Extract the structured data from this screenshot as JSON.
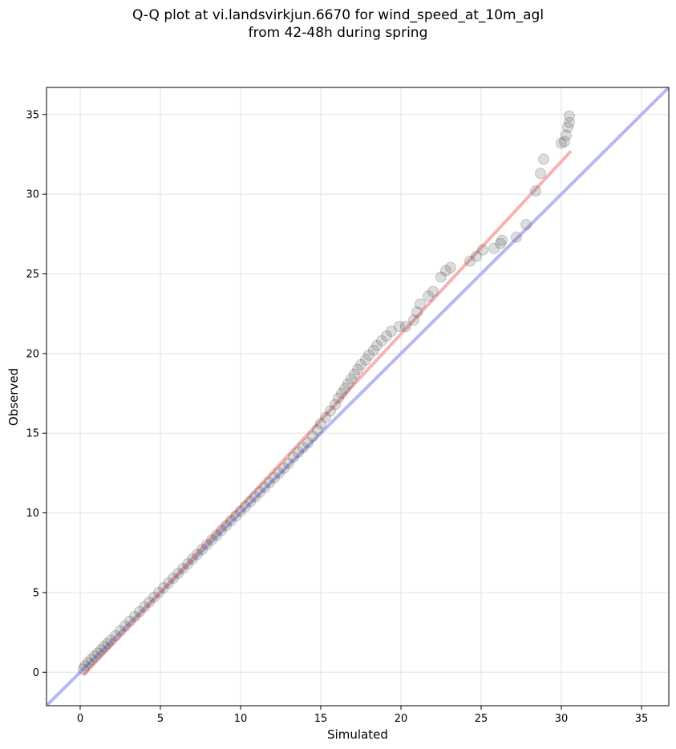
{
  "chart_data": {
    "type": "scatter",
    "title_lines": [
      "Q-Q plot at vi.landsvirkjun.6670 for wind_speed_at_10m_agl",
      "from 42-48h during spring"
    ],
    "xlabel": "Simulated",
    "ylabel": "Observed",
    "xlim": [
      -2.1,
      36.7
    ],
    "ylim": [
      -2.1,
      36.7
    ],
    "xticks": [
      0,
      5,
      10,
      15,
      20,
      25,
      30,
      35
    ],
    "yticks": [
      0,
      5,
      10,
      15,
      20,
      25,
      30,
      35
    ],
    "grid": true,
    "legend": "none",
    "reference_line": {
      "slope": 1,
      "intercept": 0,
      "color": "#aaaaf0"
    },
    "fit_line": {
      "x": [
        0.2,
        30.6
      ],
      "y": [
        -0.2,
        32.7
      ],
      "color": "#f4a6a6"
    },
    "point_color": "#444444",
    "series": [
      {
        "values": [
          [
            0.2,
            0.2
          ],
          [
            0.3,
            0.4
          ],
          [
            0.5,
            0.6
          ],
          [
            0.7,
            0.8
          ],
          [
            0.9,
            1.0
          ],
          [
            1.1,
            1.2
          ],
          [
            1.3,
            1.4
          ],
          [
            1.5,
            1.6
          ],
          [
            1.7,
            1.8
          ],
          [
            1.9,
            2.0
          ],
          [
            2.2,
            2.3
          ],
          [
            2.5,
            2.6
          ],
          [
            2.8,
            2.9
          ],
          [
            3.1,
            3.2
          ],
          [
            3.4,
            3.5
          ],
          [
            3.7,
            3.8
          ],
          [
            4.0,
            4.1
          ],
          [
            4.3,
            4.4
          ],
          [
            4.6,
            4.7
          ],
          [
            4.9,
            5.0
          ],
          [
            5.2,
            5.3
          ],
          [
            5.5,
            5.6
          ],
          [
            5.8,
            5.9
          ],
          [
            6.1,
            6.2
          ],
          [
            6.4,
            6.5
          ],
          [
            6.7,
            6.8
          ],
          [
            7.0,
            7.1
          ],
          [
            7.3,
            7.4
          ],
          [
            7.6,
            7.7
          ],
          [
            7.9,
            8.0
          ],
          [
            8.2,
            8.3
          ],
          [
            8.5,
            8.6
          ],
          [
            8.8,
            8.9
          ],
          [
            9.1,
            9.2
          ],
          [
            9.4,
            9.5
          ],
          [
            9.7,
            9.8
          ],
          [
            10.0,
            10.1
          ],
          [
            10.3,
            10.4
          ],
          [
            10.6,
            10.7
          ],
          [
            10.9,
            11.0
          ],
          [
            11.2,
            11.3
          ],
          [
            11.5,
            11.6
          ],
          [
            11.8,
            11.9
          ],
          [
            12.1,
            12.2
          ],
          [
            12.4,
            12.5
          ],
          [
            12.7,
            12.8
          ],
          [
            13.0,
            13.1
          ],
          [
            13.3,
            13.5
          ],
          [
            13.6,
            13.8
          ],
          [
            13.9,
            14.1
          ],
          [
            14.2,
            14.4
          ],
          [
            14.5,
            14.8
          ],
          [
            14.8,
            15.2
          ],
          [
            15.0,
            15.6
          ],
          [
            15.3,
            16.0
          ],
          [
            15.6,
            16.4
          ],
          [
            15.9,
            16.8
          ],
          [
            16.1,
            17.2
          ],
          [
            16.3,
            17.5
          ],
          [
            16.5,
            17.8
          ],
          [
            16.7,
            18.1
          ],
          [
            16.9,
            18.4
          ],
          [
            17.1,
            18.7
          ],
          [
            17.3,
            19.0
          ],
          [
            17.5,
            19.3
          ],
          [
            17.8,
            19.6
          ],
          [
            18.0,
            19.9
          ],
          [
            18.3,
            20.2
          ],
          [
            18.5,
            20.5
          ],
          [
            18.8,
            20.8
          ],
          [
            19.1,
            21.1
          ],
          [
            19.4,
            21.4
          ],
          [
            19.9,
            21.7
          ],
          [
            20.3,
            21.7
          ],
          [
            20.8,
            22.1
          ],
          [
            21.0,
            22.6
          ],
          [
            21.2,
            23.1
          ],
          [
            21.7,
            23.6
          ],
          [
            22.0,
            23.9
          ],
          [
            22.5,
            24.8
          ],
          [
            22.8,
            25.2
          ],
          [
            23.1,
            25.4
          ],
          [
            24.3,
            25.8
          ],
          [
            24.7,
            26.1
          ],
          [
            25.1,
            26.5
          ],
          [
            25.8,
            26.6
          ],
          [
            26.2,
            26.9
          ],
          [
            26.3,
            27.1
          ],
          [
            27.2,
            27.3
          ],
          [
            27.8,
            28.1
          ],
          [
            28.4,
            30.2
          ],
          [
            28.7,
            31.3
          ],
          [
            28.9,
            32.2
          ],
          [
            30.0,
            33.2
          ],
          [
            30.2,
            33.3
          ],
          [
            30.3,
            33.7
          ],
          [
            30.4,
            34.2
          ],
          [
            30.5,
            34.5
          ],
          [
            30.5,
            34.9
          ]
        ]
      }
    ]
  }
}
